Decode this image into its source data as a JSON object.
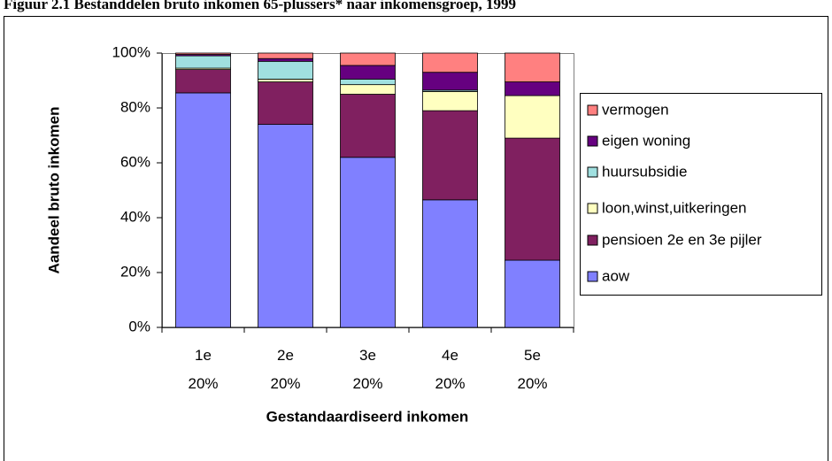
{
  "chart_data": {
    "type": "stacked_bar",
    "title": "Figuur 2.1 Bestanddelen bruto inkomen 65-plussers* naar inkomensgroep, 1999",
    "x_label": "Gestandaardiseerd inkomen",
    "y_label": "Aandeel bruto inkomen",
    "categories": [
      "1e 20%",
      "2e 20%",
      "3e 20%",
      "4e 20%",
      "5e 20%"
    ],
    "series": [
      {
        "name": "aow",
        "color": "#8080ff",
        "values": [
          85.5,
          74,
          62,
          46.5,
          24.5
        ]
      },
      {
        "name": "pensioen 2e en 3e pijler",
        "color": "#802060",
        "values": [
          8.5,
          15.5,
          23,
          32.5,
          44.5
        ]
      },
      {
        "name": "loon,winst,uitkeringen",
        "color": "#ffffc0",
        "values": [
          0.5,
          1,
          3.5,
          7,
          15.5
        ]
      },
      {
        "name": "huursubsidie",
        "color": "#a0e0e0",
        "values": [
          4.5,
          6.5,
          2,
          0.5,
          0
        ]
      },
      {
        "name": "eigen woning",
        "color": "#660080",
        "values": [
          0.5,
          1,
          5,
          6.5,
          5
        ]
      },
      {
        "name": "vermogen",
        "color": "#ff8080",
        "values": [
          0.5,
          2,
          4.5,
          7,
          10.5
        ]
      }
    ],
    "ylim": [
      0,
      100
    ],
    "yticks": [
      {
        "value": 0,
        "label": "0%"
      },
      {
        "value": 20,
        "label": "20%"
      },
      {
        "value": 40,
        "label": "40%"
      },
      {
        "value": 60,
        "label": "60%"
      },
      {
        "value": 80,
        "label": "80%"
      },
      {
        "value": 100,
        "label": "100%"
      }
    ],
    "legend": "right"
  }
}
